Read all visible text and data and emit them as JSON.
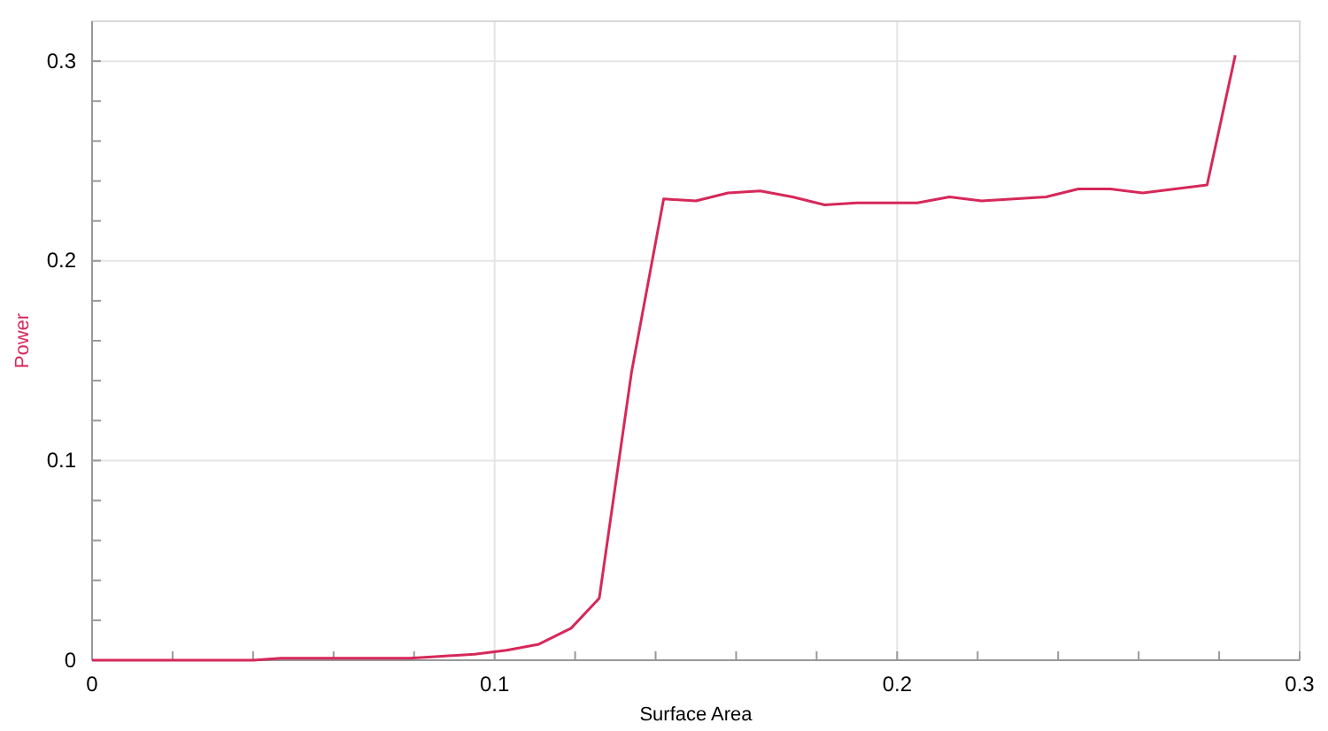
{
  "chart_data": {
    "type": "line",
    "xlabel": "Surface Area",
    "ylabel": "Power",
    "x": [
      0,
      0.008,
      0.016,
      0.024,
      0.032,
      0.04,
      0.047,
      0.055,
      0.063,
      0.071,
      0.079,
      0.087,
      0.095,
      0.103,
      0.111,
      0.119,
      0.126,
      0.134,
      0.142,
      0.15,
      0.158,
      0.166,
      0.174,
      0.182,
      0.19,
      0.198,
      0.205,
      0.213,
      0.221,
      0.229,
      0.237,
      0.245,
      0.253,
      0.261,
      0.269,
      0.277,
      0.284
    ],
    "series": [
      {
        "color": "#d6285a",
        "values": [
          0,
          0,
          0,
          0,
          0,
          0,
          0.001,
          0.001,
          0.001,
          0.001,
          0.001,
          0.002,
          0.003,
          0.005,
          0.008,
          0.016,
          0.031,
          0.144,
          0.231,
          0.23,
          0.234,
          0.235,
          0.232,
          0.228,
          0.229,
          0.229,
          0.229,
          0.232,
          0.23,
          0.231,
          0.232,
          0.236,
          0.236,
          0.234,
          0.236,
          0.238,
          0.303
        ]
      }
    ],
    "xlim": [
      0,
      0.3
    ],
    "ylim": [
      0,
      0.32
    ],
    "xticks": [
      0,
      {
        "value": 0.02,
        "label": null
      },
      {
        "value": 0.04,
        "label": null
      },
      {
        "value": 0.06,
        "label": null
      },
      {
        "value": 0.08,
        "label": null
      },
      0.1,
      {
        "value": 0.12,
        "label": null
      },
      {
        "value": 0.14,
        "label": null
      },
      {
        "value": 0.16,
        "label": null
      },
      {
        "value": 0.18,
        "label": null
      },
      0.2,
      {
        "value": 0.22,
        "label": null
      },
      {
        "value": 0.24,
        "label": null
      },
      {
        "value": 0.26,
        "label": null
      },
      {
        "value": 0.28,
        "label": null
      },
      0.3
    ],
    "yticks": [
      0,
      {
        "value": 0.02,
        "label": null
      },
      {
        "value": 0.04,
        "label": null
      },
      {
        "value": 0.06,
        "label": null
      },
      {
        "value": 0.08,
        "label": null
      },
      0.1,
      {
        "value": 0.12,
        "label": null
      },
      {
        "value": 0.14,
        "label": null
      },
      {
        "value": 0.16,
        "label": null
      },
      {
        "value": 0.18,
        "label": null
      },
      0.2,
      {
        "value": 0.22,
        "label": null
      },
      {
        "value": 0.24,
        "label": null
      },
      {
        "value": 0.26,
        "label": null
      },
      {
        "value": 0.28,
        "label": null
      },
      0.3
    ],
    "grid": true,
    "marker": "none",
    "line_style": "solid"
  }
}
